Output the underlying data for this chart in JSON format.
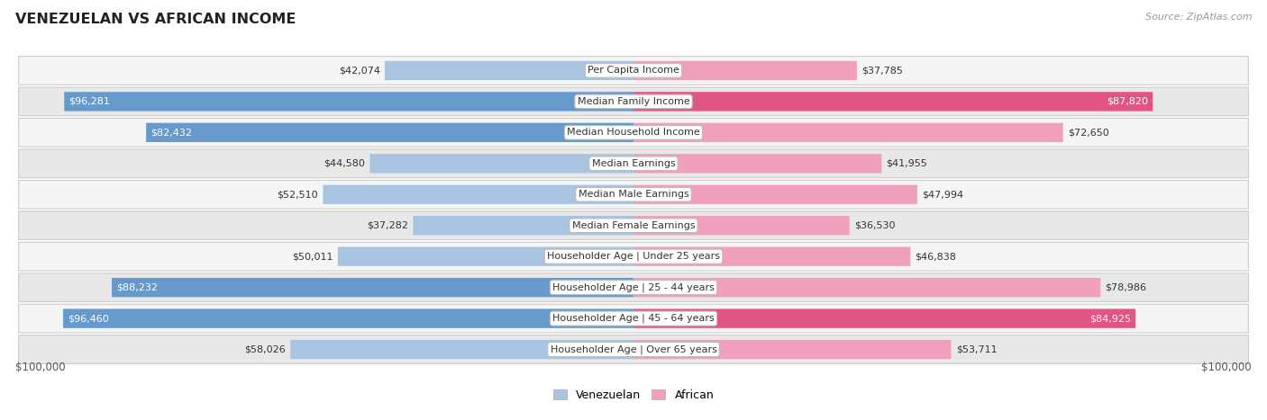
{
  "title": "VENEZUELAN VS AFRICAN INCOME",
  "source": "Source: ZipAtlas.com",
  "categories": [
    "Per Capita Income",
    "Median Family Income",
    "Median Household Income",
    "Median Earnings",
    "Median Male Earnings",
    "Median Female Earnings",
    "Householder Age | Under 25 years",
    "Householder Age | 25 - 44 years",
    "Householder Age | 45 - 64 years",
    "Householder Age | Over 65 years"
  ],
  "venezuelan_values": [
    42074,
    96281,
    82432,
    44580,
    52510,
    37282,
    50011,
    88232,
    96460,
    58026
  ],
  "african_values": [
    37785,
    87820,
    72650,
    41955,
    47994,
    36530,
    46838,
    78986,
    84925,
    53711
  ],
  "venezuelan_labels": [
    "$42,074",
    "$96,281",
    "$82,432",
    "$44,580",
    "$52,510",
    "$37,282",
    "$50,011",
    "$88,232",
    "$96,460",
    "$58,026"
  ],
  "african_labels": [
    "$37,785",
    "$87,820",
    "$72,650",
    "$41,955",
    "$47,994",
    "$36,530",
    "$46,838",
    "$78,986",
    "$84,925",
    "$53,711"
  ],
  "max_value": 100000,
  "venezuelan_color_light": "#a8c4e0",
  "venezuelan_color_dark": "#6699cc",
  "african_color_light": "#f0a0bc",
  "african_color_dark": "#e05585",
  "row_bg_light": "#f5f5f5",
  "row_bg_dark": "#e8e8e8",
  "row_border_color": "#cccccc",
  "threshold_dark": 80000,
  "x_label_left": "$100,000",
  "x_label_right": "$100,000",
  "legend_ven": "Venezuelan",
  "legend_afr": "African"
}
